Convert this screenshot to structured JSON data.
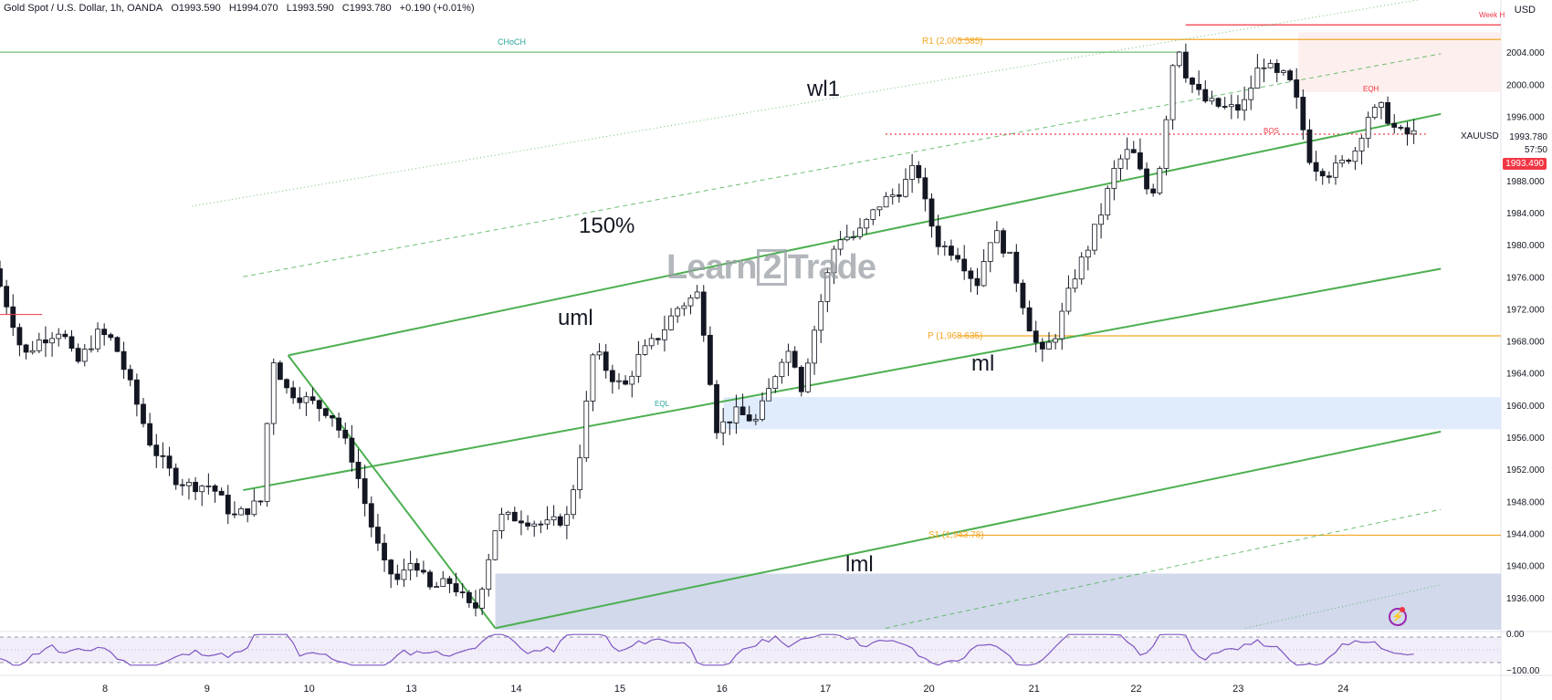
{
  "header": {
    "symbol": "Gold Spot / U.S. Dollar, 1h, OANDA",
    "open": "O1993.590",
    "high": "H1994.070",
    "low": "L1993.590",
    "close": "C1993.780",
    "change": "+0.190 (+0.01%)"
  },
  "currency": "USD",
  "watermark": {
    "left": "Learn",
    "mid": "2",
    "right": "Trade"
  },
  "annotations": {
    "wl1": "wl1",
    "pct": "150%",
    "uml": "uml",
    "ml": "ml",
    "lml": "lml",
    "choch": "CHoCH",
    "eql": "EQL",
    "eqh": "EQH",
    "bos": "BOS",
    "weekly": "Week H"
  },
  "levels": {
    "r1": "R1 (2,005.585)",
    "p": "P (1,968.635)",
    "s1": "S1 (1,943.78)"
  },
  "price_labels": {
    "symbol": "XAUUSD",
    "last": "1993.780",
    "countdown": "57:50",
    "bid": "1993.490"
  },
  "colors": {
    "up": "#ffffff",
    "down": "#131722",
    "green": "#4caf50",
    "orange": "#f5a623",
    "blue_zone": "#dbe7fb",
    "blue_zone2": "#c5d0e6",
    "red_zone": "#fdecea",
    "rsi": "#7e57c2",
    "red": "#f23645"
  },
  "chart_data": {
    "type": "candlestick",
    "symbol": "XAUUSD",
    "timeframe": "1h",
    "ylim": [
      1932,
      2008
    ],
    "yticks": [
      2004,
      2000,
      1996,
      1993.78,
      1988,
      1984,
      1980,
      1976,
      1972,
      1968,
      1964,
      1960,
      1956,
      1952,
      1948,
      1944,
      1940,
      1936
    ],
    "ytick_labels": [
      "2004.000",
      "2000.000",
      "1996.000",
      "1993.780",
      "1988.000",
      "1984.000",
      "1980.000",
      "1976.000",
      "1972.000",
      "1968.000",
      "1964.000",
      "1960.000",
      "1956.000",
      "1952.000",
      "1948.000",
      "1944.000",
      "1940.000",
      "1936.000"
    ],
    "xticks": [
      {
        "label": "8",
        "x": 0.7
      },
      {
        "label": "9",
        "x": 1.38
      },
      {
        "label": "10",
        "x": 2.06
      },
      {
        "label": "13",
        "x": 2.74
      },
      {
        "label": "14",
        "x": 3.44
      },
      {
        "label": "15",
        "x": 4.13
      },
      {
        "label": "16",
        "x": 4.81
      },
      {
        "label": "17",
        "x": 5.5
      },
      {
        "label": "20",
        "x": 6.19
      },
      {
        "label": "21",
        "x": 6.89
      },
      {
        "label": "22",
        "x": 7.57
      },
      {
        "label": "23",
        "x": 8.25
      },
      {
        "label": "24",
        "x": 8.95
      }
    ],
    "pivots": [
      [
        0,
        1977
      ],
      [
        0.12,
        1971
      ],
      [
        0.2,
        1966
      ],
      [
        0.3,
        1968
      ],
      [
        0.45,
        1969.5
      ],
      [
        0.55,
        1965
      ],
      [
        0.7,
        1969
      ],
      [
        0.8,
        1968
      ],
      [
        0.92,
        1962
      ],
      [
        1.05,
        1955
      ],
      [
        1.2,
        1951
      ],
      [
        1.3,
        1950
      ],
      [
        1.45,
        1950
      ],
      [
        1.6,
        1946
      ],
      [
        1.78,
        1948
      ],
      [
        1.86,
        1966
      ],
      [
        1.95,
        1962
      ],
      [
        2.1,
        1960.5
      ],
      [
        2.25,
        1959
      ],
      [
        2.4,
        1953
      ],
      [
        2.5,
        1946
      ],
      [
        2.6,
        1940
      ],
      [
        2.7,
        1938
      ],
      [
        2.8,
        1941
      ],
      [
        2.9,
        1937
      ],
      [
        3.05,
        1938
      ],
      [
        3.2,
        1934
      ],
      [
        3.26,
        1938
      ],
      [
        3.36,
        1946
      ],
      [
        3.5,
        1946
      ],
      [
        3.68,
        1945
      ],
      [
        3.82,
        1946
      ],
      [
        3.9,
        1953
      ],
      [
        4.0,
        1967
      ],
      [
        4.1,
        1964
      ],
      [
        4.2,
        1962
      ],
      [
        4.3,
        1966
      ],
      [
        4.45,
        1969
      ],
      [
        4.55,
        1972
      ],
      [
        4.7,
        1974
      ],
      [
        4.82,
        1957
      ],
      [
        4.95,
        1959
      ],
      [
        5.08,
        1958
      ],
      [
        5.15,
        1961
      ],
      [
        5.25,
        1966
      ],
      [
        5.32,
        1967
      ],
      [
        5.38,
        1962
      ],
      [
        5.5,
        1972
      ],
      [
        5.62,
        1981
      ],
      [
        5.75,
        1981
      ],
      [
        5.9,
        1985
      ],
      [
        6.05,
        1987
      ],
      [
        6.15,
        1990
      ],
      [
        6.22,
        1984
      ],
      [
        6.3,
        1980
      ],
      [
        6.42,
        1979
      ],
      [
        6.55,
        1975
      ],
      [
        6.66,
        1982
      ],
      [
        6.78,
        1978
      ],
      [
        6.9,
        1970
      ],
      [
        6.98,
        1966
      ],
      [
        7.08,
        1969
      ],
      [
        7.2,
        1976
      ],
      [
        7.3,
        1980
      ],
      [
        7.38,
        1984
      ],
      [
        7.48,
        1990
      ],
      [
        7.58,
        1992
      ],
      [
        7.68,
        1987
      ],
      [
        7.75,
        1987
      ],
      [
        7.82,
        1997
      ],
      [
        7.88,
        2006
      ],
      [
        7.95,
        2001
      ],
      [
        8.06,
        1998
      ],
      [
        8.2,
        1997
      ],
      [
        8.32,
        1997
      ],
      [
        8.45,
        2003
      ],
      [
        8.55,
        2001
      ],
      [
        8.62,
        2001
      ],
      [
        8.68,
        1998
      ],
      [
        8.78,
        1990
      ],
      [
        8.9,
        1989
      ],
      [
        8.98,
        1990
      ],
      [
        9.08,
        1992
      ],
      [
        9.15,
        1996
      ],
      [
        9.25,
        1997
      ],
      [
        9.35,
        1994
      ],
      [
        9.42,
        1993.78
      ]
    ],
    "zones": [
      {
        "name": "demand-zone-lower",
        "x0": 3.3,
        "x1": 10,
        "y0": 1932,
        "y1": 1939
      },
      {
        "name": "demand-zone-upper",
        "x0": 4.82,
        "x1": 10,
        "y0": 1957,
        "y1": 1961
      },
      {
        "name": "supply-zone",
        "x0": 8.65,
        "x1": 10,
        "y0": 1999,
        "y1": 2006.5
      }
    ],
    "hlines": [
      {
        "name": "choch-line",
        "x0": 0,
        "x1": 7.86,
        "y": 2004,
        "color": "green"
      },
      {
        "name": "r1-line",
        "x0": 6.38,
        "x1": 10,
        "y": 2005.585,
        "color": "orange"
      },
      {
        "name": "pivot-line",
        "x0": 6.38,
        "x1": 10,
        "y": 1968.635,
        "color": "orange"
      },
      {
        "name": "s1-line",
        "x0": 6.38,
        "x1": 10,
        "y": 1943.78,
        "color": "orange"
      },
      {
        "name": "weekly-high-line",
        "x0": 7.9,
        "x1": 10,
        "y": 2007.4,
        "color": "red"
      },
      {
        "name": "prev-high-dotted",
        "x0": 5.9,
        "x1": 9.5,
        "y": 1993.78,
        "color": "red",
        "dash": true
      }
    ],
    "pitchfork": {
      "handle": [
        [
          1.92,
          1966.2
        ],
        [
          3.3,
          1932.2
        ]
      ],
      "lines": [
        {
          "name": "uml",
          "p0": [
            1.92,
            1966.2
          ],
          "p1": [
            9.6,
            1996.3
          ]
        },
        {
          "name": "ml",
          "p0": [
            1.62,
            1949.4
          ],
          "p1": [
            9.6,
            1977.0
          ]
        },
        {
          "name": "lml",
          "p0": [
            3.3,
            1932.2
          ],
          "p1": [
            9.6,
            1956.7
          ]
        }
      ],
      "dashed": [
        {
          "name": "150-upper",
          "p0": [
            1.62,
            1976.0
          ],
          "p1": [
            9.6,
            2003.8
          ]
        },
        {
          "name": "150-lower",
          "p0": [
            5.9,
            1932.2
          ],
          "p1": [
            9.6,
            1947.0
          ]
        },
        {
          "name": "wl1-upper",
          "p0": [
            1.28,
            1984.8
          ],
          "p1": [
            9.6,
            2011.0
          ]
        },
        {
          "name": "wl1-lower",
          "p0": [
            8.3,
            1932.2
          ],
          "p1": [
            9.6,
            1937.6
          ]
        }
      ]
    },
    "rsi": {
      "upper": 70,
      "lower": 30,
      "ylim": [
        0,
        100
      ],
      "tick_labels": [
        "0.00",
        "−100.00"
      ]
    }
  }
}
